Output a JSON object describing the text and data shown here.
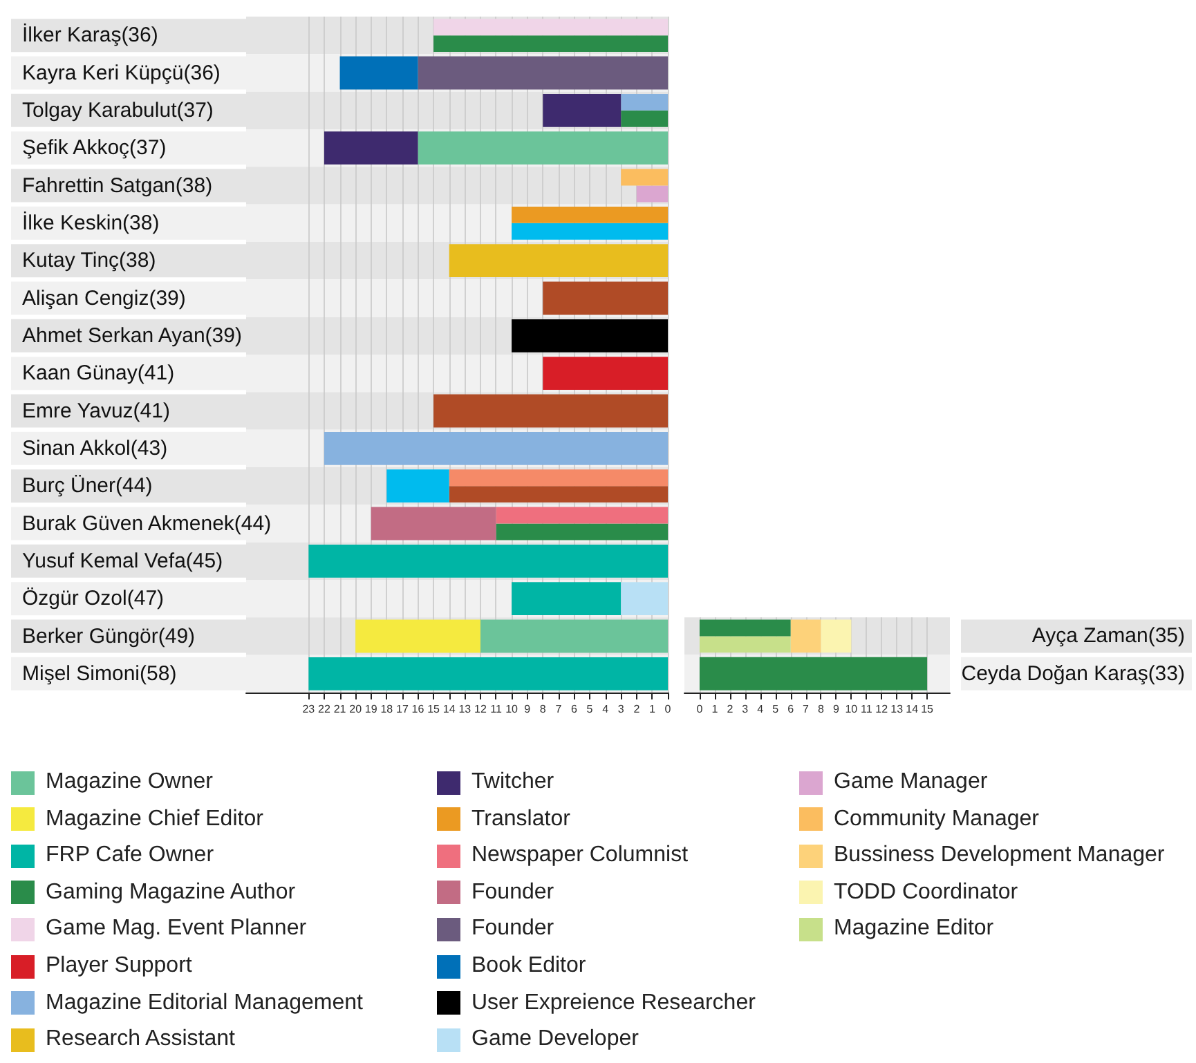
{
  "chart_data": [
    {
      "type": "bar",
      "orientation": "horizontal",
      "categories": [
        "İlker Karaş(36)",
        "Kayra Keri Küpçü(36)",
        "Tolgay Karabulut(37)",
        "Şefik Akkoç(37)",
        "Fahrettin Satgan(38)",
        "İlke Keskin(38)",
        "Kutay Tinç(38)",
        "Alişan Cengiz(39)",
        "Ahmet Serkan Ayan(39)",
        "Kaan Günay(41)",
        "Emre Yavuz(41)",
        "Sinan Akkol(43)",
        "Burç Üner(44)",
        "Burak Güven Akmenek(44)",
        "Yusuf Kemal Vefa(45)",
        "Özgür Ozol(47)",
        "Berker Güngör(49)",
        "Mişel Simoni(58)"
      ],
      "series": [
        {
          "name": "Magazine Owner",
          "color": "#6bc49a",
          "values": [
            null,
            null,
            null,
            16,
            null,
            null,
            null,
            null,
            null,
            null,
            null,
            null,
            null,
            null,
            null,
            null,
            12,
            null
          ],
          "base": [
            null,
            null,
            null,
            0,
            null,
            null,
            null,
            null,
            null,
            null,
            null,
            null,
            null,
            null,
            null,
            null,
            0,
            null
          ]
        },
        {
          "name": "Magazine Chief Editor",
          "color": "#f5ea3f",
          "values": [
            null,
            null,
            null,
            null,
            null,
            null,
            null,
            null,
            null,
            null,
            null,
            null,
            null,
            null,
            null,
            null,
            8,
            null
          ],
          "base": [
            null,
            null,
            null,
            null,
            null,
            null,
            null,
            null,
            null,
            null,
            null,
            null,
            null,
            null,
            null,
            null,
            12,
            null
          ]
        },
        {
          "name": "FRP Cafe Owner",
          "color": "#00b5a5",
          "values": [
            null,
            null,
            null,
            null,
            null,
            null,
            null,
            null,
            null,
            null,
            null,
            null,
            null,
            null,
            23,
            7,
            null,
            23
          ],
          "base": [
            null,
            null,
            null,
            null,
            null,
            null,
            null,
            null,
            null,
            null,
            null,
            null,
            null,
            null,
            0,
            3,
            null,
            0
          ]
        },
        {
          "name": "Gaming Magazine Author",
          "color": "#2a8c4a",
          "values": [
            15,
            null,
            3,
            null,
            null,
            null,
            null,
            null,
            null,
            null,
            null,
            null,
            null,
            11,
            null,
            null,
            null,
            null
          ],
          "base": [
            0,
            null,
            0,
            null,
            null,
            null,
            null,
            null,
            null,
            null,
            null,
            null,
            null,
            0,
            null,
            null,
            null,
            null
          ]
        },
        {
          "name": "Game Mag. Event Planner",
          "color": "#f0d5e8",
          "values": [
            15,
            null,
            null,
            null,
            null,
            null,
            null,
            null,
            null,
            null,
            null,
            null,
            null,
            null,
            null,
            null,
            null,
            null
          ],
          "base": [
            0,
            null,
            null,
            null,
            null,
            null,
            null,
            null,
            null,
            null,
            null,
            null,
            null,
            null,
            null,
            null,
            null,
            null
          ]
        },
        {
          "name": "Player Support",
          "color": "#d81e27",
          "values": [
            null,
            null,
            null,
            null,
            null,
            null,
            null,
            null,
            null,
            8,
            null,
            null,
            null,
            null,
            null,
            null,
            null,
            null
          ],
          "base": [
            null,
            null,
            null,
            null,
            null,
            null,
            null,
            null,
            null,
            0,
            null,
            null,
            null,
            null,
            null,
            null,
            null,
            null
          ]
        },
        {
          "name": "Magazine Editorial Management",
          "color": "#87b2df",
          "values": [
            null,
            null,
            3,
            null,
            null,
            null,
            null,
            null,
            null,
            null,
            null,
            22,
            null,
            null,
            null,
            null,
            null,
            null
          ],
          "base": [
            null,
            null,
            0,
            null,
            null,
            null,
            null,
            null,
            null,
            null,
            null,
            0,
            null,
            null,
            null,
            null,
            null,
            null
          ]
        },
        {
          "name": "Research Assistant",
          "color": "#e8bd1e",
          "values": [
            null,
            null,
            null,
            null,
            null,
            null,
            14,
            null,
            null,
            null,
            null,
            null,
            null,
            null,
            null,
            null,
            null,
            null
          ],
          "base": [
            null,
            null,
            null,
            null,
            null,
            null,
            0,
            null,
            null,
            null,
            null,
            null,
            null,
            null,
            null,
            null,
            null,
            null
          ]
        },
        {
          "name": "Twitcher",
          "color": "#3e2a6e",
          "values": [
            null,
            null,
            5,
            6,
            null,
            null,
            null,
            null,
            null,
            null,
            null,
            null,
            null,
            null,
            null,
            null,
            null,
            null
          ],
          "base": [
            null,
            null,
            3,
            16,
            null,
            null,
            null,
            null,
            null,
            null,
            null,
            null,
            null,
            null,
            null,
            null,
            null,
            null
          ]
        },
        {
          "color": "#b04b26",
          "values": [
            null,
            null,
            null,
            null,
            null,
            null,
            null,
            8,
            null,
            null,
            15,
            null,
            14,
            null,
            null,
            null,
            null,
            null
          ],
          "base": [
            null,
            null,
            null,
            null,
            null,
            null,
            null,
            0,
            null,
            null,
            0,
            null,
            0,
            null,
            null,
            null,
            null,
            null
          ]
        },
        {
          "color": "#f58a68",
          "values": [
            null,
            null,
            null,
            null,
            null,
            null,
            null,
            null,
            null,
            null,
            null,
            null,
            14,
            null,
            null,
            null,
            null,
            null
          ],
          "base": [
            null,
            null,
            null,
            null,
            null,
            null,
            null,
            null,
            null,
            null,
            null,
            null,
            0,
            null,
            null,
            null,
            null,
            null
          ]
        },
        {
          "color": "#00bbee",
          "values": [
            null,
            null,
            null,
            null,
            null,
            10,
            null,
            null,
            null,
            null,
            null,
            null,
            4,
            null,
            null,
            null,
            null,
            null
          ],
          "base": [
            null,
            null,
            null,
            null,
            null,
            0,
            null,
            null,
            null,
            null,
            null,
            null,
            14,
            null,
            null,
            null,
            null,
            null
          ]
        },
        {
          "name": "Translator",
          "color": "#eb9a22",
          "values": [
            null,
            null,
            null,
            null,
            null,
            10,
            null,
            null,
            null,
            null,
            null,
            null,
            null,
            null,
            null,
            null,
            null,
            null
          ],
          "base": [
            null,
            null,
            null,
            null,
            null,
            0,
            null,
            null,
            null,
            null,
            null,
            null,
            null,
            null,
            null,
            null,
            null,
            null
          ]
        },
        {
          "name": "Newspaper Columnist",
          "color": "#ef6f7e",
          "values": [
            null,
            null,
            null,
            null,
            null,
            null,
            null,
            null,
            null,
            null,
            null,
            null,
            null,
            11,
            null,
            null,
            null,
            null
          ],
          "base": [
            null,
            null,
            null,
            null,
            null,
            null,
            null,
            null,
            null,
            null,
            null,
            null,
            null,
            0,
            null,
            null,
            null,
            null
          ]
        },
        {
          "name": "Founder",
          "color": "#c26c84",
          "values": [
            null,
            null,
            null,
            null,
            null,
            null,
            null,
            null,
            null,
            null,
            null,
            null,
            null,
            8,
            null,
            null,
            null,
            null
          ],
          "base": [
            null,
            null,
            null,
            null,
            null,
            null,
            null,
            null,
            null,
            null,
            null,
            null,
            null,
            11,
            null,
            null,
            null,
            null
          ]
        },
        {
          "name": "Founder",
          "color": "#6b5b7e",
          "values": [
            null,
            16,
            null,
            null,
            null,
            null,
            null,
            null,
            null,
            null,
            null,
            null,
            null,
            null,
            null,
            null,
            null,
            null
          ],
          "base": [
            null,
            0,
            null,
            null,
            null,
            null,
            null,
            null,
            null,
            null,
            null,
            null,
            null,
            null,
            null,
            null,
            null,
            null
          ]
        },
        {
          "name": "Book Editor",
          "color": "#0070b8",
          "values": [
            null,
            5,
            null,
            null,
            null,
            null,
            null,
            null,
            null,
            null,
            null,
            null,
            null,
            null,
            null,
            null,
            null,
            null
          ],
          "base": [
            null,
            16,
            null,
            null,
            null,
            null,
            null,
            null,
            null,
            null,
            null,
            null,
            null,
            null,
            null,
            null,
            null,
            null
          ]
        },
        {
          "name": "User Expreience Researcher",
          "color": "#000000",
          "values": [
            null,
            null,
            null,
            null,
            null,
            null,
            null,
            null,
            10,
            null,
            null,
            null,
            null,
            null,
            null,
            null,
            null,
            null
          ],
          "base": [
            null,
            null,
            null,
            null,
            null,
            null,
            null,
            null,
            0,
            null,
            null,
            null,
            null,
            null,
            null,
            null,
            null,
            null
          ]
        },
        {
          "name": "Game Developer",
          "color": "#b8e0f5",
          "values": [
            null,
            null,
            null,
            null,
            null,
            null,
            null,
            null,
            null,
            null,
            null,
            null,
            null,
            null,
            null,
            3,
            null,
            null
          ],
          "base": [
            null,
            null,
            null,
            null,
            null,
            null,
            null,
            null,
            null,
            null,
            null,
            null,
            null,
            null,
            null,
            0,
            null,
            null
          ]
        },
        {
          "name": "Game Manager",
          "color": "#dba6d0",
          "values": [
            null,
            null,
            null,
            null,
            2,
            null,
            null,
            null,
            null,
            null,
            null,
            null,
            null,
            null,
            null,
            null,
            null,
            null
          ],
          "base": [
            null,
            null,
            null,
            null,
            0,
            null,
            null,
            null,
            null,
            null,
            null,
            null,
            null,
            null,
            null,
            null,
            null,
            null
          ]
        },
        {
          "name": "Community Manager",
          "color": "#fbbd5f",
          "values": [
            null,
            null,
            null,
            null,
            3,
            null,
            null,
            null,
            null,
            null,
            null,
            null,
            null,
            null,
            null,
            null,
            null,
            null
          ],
          "base": [
            null,
            null,
            null,
            null,
            0,
            null,
            null,
            null,
            null,
            null,
            null,
            null,
            null,
            null,
            null,
            null,
            null,
            null
          ]
        }
      ],
      "xlim": [
        27,
        0
      ],
      "xticks": [
        0,
        1,
        2,
        3,
        4,
        5,
        6,
        7,
        8,
        9,
        10,
        11,
        12,
        13,
        14,
        15,
        16,
        17,
        18,
        19,
        20,
        21,
        22,
        23
      ],
      "grid": "x",
      "legend": "bottom"
    },
    {
      "type": "bar",
      "orientation": "horizontal",
      "categories": [
        "Ayça Zaman(35)",
        "Ceyda Doğan Karaş(33)"
      ],
      "series": [
        {
          "name": "Bussiness Development Manager",
          "color": "#fdd27a",
          "values": [
            2,
            null
          ],
          "base": [
            6,
            null
          ]
        },
        {
          "name": "TODD Coordinator",
          "color": "#fbf4b0",
          "values": [
            2,
            null
          ],
          "base": [
            8,
            null
          ]
        },
        {
          "name": "Magazine Editor",
          "color": "#c7e08a",
          "values": [
            6,
            null
          ],
          "base": [
            0,
            null
          ]
        },
        {
          "name": "Gaming Magazine Author",
          "color": "#2a8c4a",
          "values": [
            6,
            15
          ],
          "base": [
            0,
            0
          ]
        }
      ],
      "xlim": [
        -1,
        16.5
      ],
      "xticks": [
        0,
        1,
        2,
        3,
        4,
        5,
        6,
        7,
        8,
        9,
        10,
        11,
        12,
        13,
        14,
        15
      ],
      "grid": "x",
      "legend": "bottom"
    }
  ]
}
